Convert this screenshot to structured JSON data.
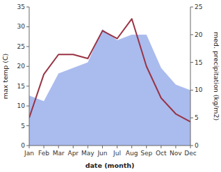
{
  "chart_data": {
    "type": "line",
    "categories": [
      "Jan",
      "Feb",
      "Mar",
      "Apr",
      "May",
      "Jun",
      "Jul",
      "Aug",
      "Sep",
      "Oct",
      "Nov",
      "Dec"
    ],
    "series": [
      {
        "type": "area",
        "axis": "y2",
        "color": "#aabbee",
        "values": [
          9,
          8,
          13,
          14,
          15,
          21,
          19,
          20,
          20,
          14,
          11,
          10
        ]
      },
      {
        "type": "line",
        "color": "#993344",
        "values": [
          7,
          18,
          23,
          23,
          22,
          29,
          27,
          32,
          20,
          12,
          8,
          6
        ]
      }
    ],
    "x_label": "date (month)",
    "y_label": "max temp (C)",
    "y2_label": "med. precipitation (kg/m2)",
    "ylim": [
      0,
      35
    ],
    "yticks": [
      0,
      5,
      10,
      15,
      20,
      25,
      30,
      35
    ],
    "y2lim": [
      0,
      25
    ],
    "y2ticks": [
      0,
      5,
      10,
      15,
      20,
      25
    ],
    "grid": false
  }
}
